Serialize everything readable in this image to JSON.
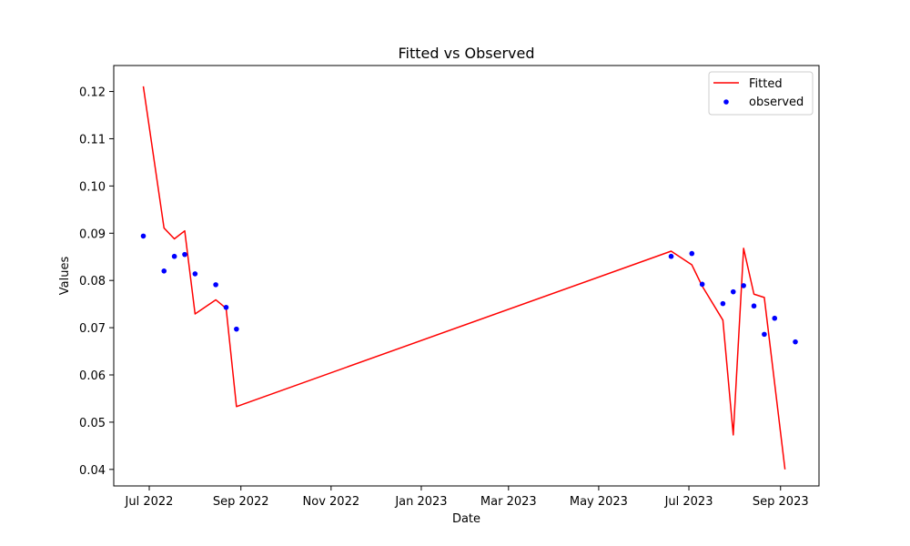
{
  "chart_data": {
    "type": "line",
    "title": "Fitted vs Observed",
    "xlabel": "Date",
    "ylabel": "Values",
    "xlim": [
      "2022-06-07",
      "2023-09-27"
    ],
    "ylim": [
      0.0365,
      0.1255
    ],
    "x_ticks": [
      {
        "date": "2022-07-01",
        "label": "Jul 2022"
      },
      {
        "date": "2022-09-01",
        "label": "Sep 2022"
      },
      {
        "date": "2022-11-01",
        "label": "Nov 2022"
      },
      {
        "date": "2023-01-01",
        "label": "Jan 2023"
      },
      {
        "date": "2023-03-01",
        "label": "Mar 2023"
      },
      {
        "date": "2023-05-01",
        "label": "May 2023"
      },
      {
        "date": "2023-07-01",
        "label": "Jul 2023"
      },
      {
        "date": "2023-09-01",
        "label": "Sep 2023"
      }
    ],
    "y_ticks": [
      {
        "value": 0.04,
        "label": "0.04"
      },
      {
        "value": 0.05,
        "label": "0.05"
      },
      {
        "value": 0.06,
        "label": "0.06"
      },
      {
        "value": 0.07,
        "label": "0.07"
      },
      {
        "value": 0.08,
        "label": "0.08"
      },
      {
        "value": 0.09,
        "label": "0.09"
      },
      {
        "value": 0.1,
        "label": "0.10"
      },
      {
        "value": 0.11,
        "label": "0.11"
      },
      {
        "value": 0.12,
        "label": "0.12"
      }
    ],
    "legend_position": "top-right",
    "series": [
      {
        "name": "Fitted",
        "kind": "line",
        "color": "#ff0000",
        "points": [
          {
            "x": "2022-06-27",
            "y": 0.1211
          },
          {
            "x": "2022-07-11",
            "y": 0.0911
          },
          {
            "x": "2022-07-18",
            "y": 0.0888
          },
          {
            "x": "2022-07-25",
            "y": 0.0905
          },
          {
            "x": "2022-08-01",
            "y": 0.0729
          },
          {
            "x": "2022-08-15",
            "y": 0.0759
          },
          {
            "x": "2022-08-22",
            "y": 0.0741
          },
          {
            "x": "2022-08-29",
            "y": 0.0533
          },
          {
            "x": "2023-06-19",
            "y": 0.0862
          },
          {
            "x": "2023-07-03",
            "y": 0.0833
          },
          {
            "x": "2023-07-10",
            "y": 0.0788
          },
          {
            "x": "2023-07-24",
            "y": 0.0716
          },
          {
            "x": "2023-07-31",
            "y": 0.0473
          },
          {
            "x": "2023-08-07",
            "y": 0.0868
          },
          {
            "x": "2023-08-14",
            "y": 0.0771
          },
          {
            "x": "2023-08-21",
            "y": 0.0764
          },
          {
            "x": "2023-09-04",
            "y": 0.04
          }
        ]
      },
      {
        "name": "observed",
        "kind": "scatter",
        "color": "#0000ff",
        "points": [
          {
            "x": "2022-06-27",
            "y": 0.0894
          },
          {
            "x": "2022-07-11",
            "y": 0.082
          },
          {
            "x": "2022-07-18",
            "y": 0.0851
          },
          {
            "x": "2022-07-25",
            "y": 0.0855
          },
          {
            "x": "2022-08-01",
            "y": 0.0814
          },
          {
            "x": "2022-08-15",
            "y": 0.0791
          },
          {
            "x": "2022-08-22",
            "y": 0.0743
          },
          {
            "x": "2022-08-29",
            "y": 0.0697
          },
          {
            "x": "2023-06-19",
            "y": 0.0851
          },
          {
            "x": "2023-07-03",
            "y": 0.0857
          },
          {
            "x": "2023-07-10",
            "y": 0.0792
          },
          {
            "x": "2023-07-24",
            "y": 0.0751
          },
          {
            "x": "2023-07-31",
            "y": 0.0776
          },
          {
            "x": "2023-08-07",
            "y": 0.0789
          },
          {
            "x": "2023-08-14",
            "y": 0.0746
          },
          {
            "x": "2023-08-21",
            "y": 0.0686
          },
          {
            "x": "2023-08-28",
            "y": 0.072
          },
          {
            "x": "2023-09-11",
            "y": 0.067
          }
        ]
      }
    ]
  }
}
